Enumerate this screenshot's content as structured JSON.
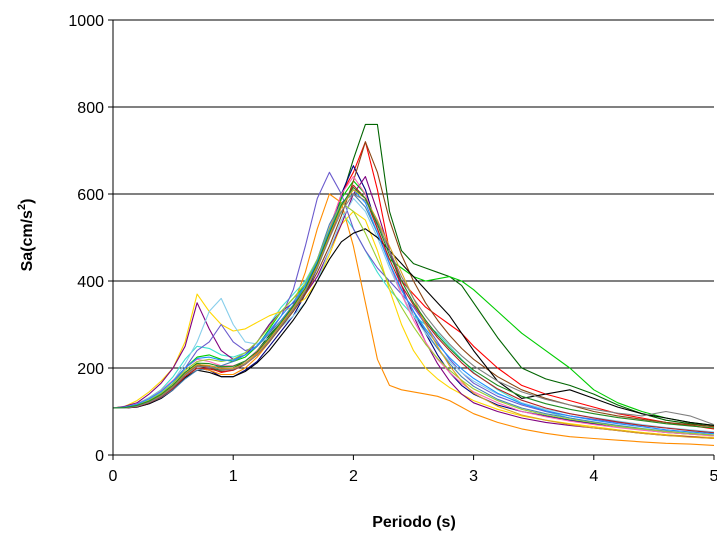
{
  "chart_data": {
    "type": "line",
    "title": "",
    "xlabel": "Periodo (s)",
    "ylabel_main": "Sa(cm/s",
    "ylabel_sup": "2",
    "ylabel_close": ")",
    "xlim": [
      0,
      5
    ],
    "ylim": [
      0,
      1000
    ],
    "xticks": [
      0,
      1,
      2,
      3,
      4,
      5
    ],
    "xtick_labels": [
      "0",
      "1",
      "2",
      "3",
      "4",
      "5"
    ],
    "yticks": [
      0,
      200,
      400,
      600,
      800,
      1000
    ],
    "ytick_labels": [
      "0",
      "200",
      "400",
      "600",
      "800",
      "1000"
    ],
    "grid": "horizontal",
    "legend": "none",
    "x": [
      0,
      0.1,
      0.2,
      0.3,
      0.4,
      0.5,
      0.6,
      0.7,
      0.8,
      0.9,
      1.0,
      1.1,
      1.2,
      1.3,
      1.4,
      1.5,
      1.6,
      1.7,
      1.8,
      1.9,
      2.0,
      2.1,
      2.2,
      2.3,
      2.4,
      2.5,
      2.6,
      2.7,
      2.8,
      2.9,
      3.0,
      3.2,
      3.4,
      3.6,
      3.8,
      4.0,
      4.2,
      4.4,
      4.6,
      4.8,
      5.0
    ],
    "series": [
      {
        "color": "#006400",
        "values": [
          108,
          108,
          112,
          122,
          136,
          160,
          190,
          210,
          200,
          195,
          200,
          215,
          240,
          275,
          305,
          335,
          375,
          430,
          500,
          590,
          680,
          760,
          760,
          560,
          470,
          440,
          430,
          420,
          410,
          390,
          350,
          270,
          200,
          175,
          160,
          140,
          115,
          95,
          80,
          72,
          65
        ]
      },
      {
        "color": "#ff0000",
        "values": [
          108,
          108,
          114,
          125,
          140,
          160,
          185,
          205,
          200,
          190,
          195,
          210,
          235,
          265,
          300,
          335,
          380,
          440,
          520,
          600,
          650,
          720,
          610,
          470,
          400,
          370,
          340,
          320,
          300,
          280,
          250,
          200,
          160,
          140,
          125,
          110,
          95,
          85,
          75,
          68,
          60
        ]
      },
      {
        "color": "#00cc00",
        "values": [
          108,
          110,
          116,
          128,
          145,
          170,
          200,
          225,
          230,
          220,
          215,
          225,
          250,
          290,
          330,
          360,
          390,
          440,
          510,
          590,
          630,
          600,
          520,
          450,
          430,
          410,
          400,
          405,
          410,
          400,
          380,
          330,
          280,
          240,
          200,
          150,
          120,
          100,
          85,
          75,
          68
        ]
      },
      {
        "color": "#000080",
        "values": [
          108,
          108,
          110,
          118,
          130,
          150,
          180,
          200,
          195,
          180,
          180,
          195,
          215,
          250,
          285,
          320,
          370,
          430,
          510,
          600,
          665,
          610,
          520,
          440,
          380,
          330,
          280,
          230,
          190,
          160,
          140,
          115,
          100,
          90,
          80,
          72,
          65,
          58,
          52,
          48,
          45
        ]
      },
      {
        "color": "#ff8c00",
        "values": [
          108,
          108,
          112,
          120,
          134,
          155,
          180,
          200,
          195,
          185,
          185,
          200,
          225,
          260,
          300,
          345,
          420,
          520,
          600,
          580,
          480,
          350,
          220,
          160,
          150,
          145,
          140,
          135,
          125,
          110,
          95,
          75,
          60,
          50,
          42,
          38,
          34,
          30,
          27,
          25,
          22
        ]
      },
      {
        "color": "#40e0d0",
        "values": [
          108,
          110,
          118,
          132,
          150,
          180,
          220,
          250,
          245,
          230,
          225,
          235,
          260,
          300,
          340,
          370,
          400,
          450,
          520,
          560,
          520,
          470,
          420,
          380,
          350,
          320,
          300,
          280,
          250,
          220,
          190,
          150,
          120,
          100,
          85,
          75,
          65,
          58,
          52,
          48,
          44
        ]
      },
      {
        "color": "#ffd700",
        "values": [
          108,
          112,
          125,
          145,
          170,
          200,
          260,
          370,
          330,
          300,
          285,
          290,
          305,
          320,
          330,
          340,
          360,
          400,
          460,
          530,
          560,
          540,
          470,
          380,
          300,
          240,
          200,
          175,
          155,
          140,
          125,
          105,
          90,
          80,
          72,
          65,
          58,
          52,
          47,
          43,
          40
        ]
      },
      {
        "color": "#800080",
        "values": [
          108,
          112,
          120,
          140,
          165,
          200,
          250,
          350,
          290,
          240,
          220,
          230,
          260,
          300,
          330,
          350,
          370,
          410,
          470,
          530,
          600,
          640,
          560,
          470,
          390,
          320,
          260,
          210,
          170,
          140,
          120,
          100,
          85,
          75,
          68,
          62,
          56,
          50,
          45,
          42,
          38
        ]
      },
      {
        "color": "#6a5acd",
        "values": [
          108,
          108,
          114,
          124,
          140,
          165,
          200,
          240,
          260,
          300,
          260,
          240,
          250,
          280,
          320,
          380,
          480,
          590,
          650,
          600,
          520,
          470,
          430,
          400,
          370,
          340,
          300,
          260,
          220,
          190,
          165,
          135,
          115,
          100,
          90,
          82,
          75,
          68,
          62,
          57,
          52
        ]
      },
      {
        "color": "#87ceeb",
        "values": [
          108,
          110,
          116,
          128,
          145,
          170,
          210,
          260,
          330,
          360,
          300,
          260,
          255,
          270,
          295,
          320,
          350,
          400,
          470,
          540,
          590,
          560,
          500,
          430,
          370,
          320,
          280,
          245,
          215,
          190,
          170,
          140,
          120,
          105,
          95,
          86,
          78,
          70,
          63,
          58,
          53
        ]
      },
      {
        "color": "#8b4513",
        "values": [
          108,
          108,
          112,
          122,
          136,
          158,
          185,
          205,
          205,
          200,
          200,
          210,
          230,
          260,
          295,
          330,
          370,
          420,
          480,
          550,
          630,
          720,
          650,
          540,
          460,
          400,
          350,
          310,
          275,
          245,
          220,
          180,
          150,
          130,
          115,
          100,
          90,
          82,
          75,
          70,
          65
        ]
      },
      {
        "color": "#ff69b4",
        "values": [
          108,
          110,
          118,
          130,
          148,
          172,
          200,
          220,
          215,
          205,
          205,
          215,
          240,
          270,
          305,
          340,
          380,
          440,
          520,
          600,
          640,
          600,
          520,
          440,
          370,
          310,
          260,
          220,
          190,
          165,
          145,
          120,
          100,
          88,
          78,
          70,
          63,
          57,
          52,
          48,
          44
        ]
      },
      {
        "color": "#000000",
        "values": [
          108,
          108,
          110,
          118,
          130,
          150,
          178,
          195,
          190,
          180,
          180,
          192,
          212,
          240,
          275,
          310,
          350,
          400,
          450,
          490,
          510,
          520,
          500,
          470,
          440,
          410,
          380,
          350,
          320,
          280,
          240,
          170,
          130,
          140,
          150,
          130,
          110,
          95,
          85,
          75,
          68
        ]
      },
      {
        "color": "#4682b4",
        "values": [
          108,
          108,
          112,
          120,
          132,
          150,
          175,
          195,
          200,
          205,
          215,
          230,
          250,
          280,
          310,
          345,
          390,
          450,
          530,
          580,
          600,
          570,
          510,
          440,
          380,
          330,
          285,
          245,
          210,
          180,
          158,
          128,
          108,
          95,
          85,
          76,
          68,
          61,
          55,
          50,
          46
        ]
      },
      {
        "color": "#9acd32",
        "values": [
          108,
          109,
          115,
          126,
          142,
          165,
          195,
          215,
          220,
          215,
          220,
          235,
          260,
          295,
          330,
          360,
          395,
          450,
          520,
          580,
          560,
          510,
          450,
          390,
          340,
          295,
          255,
          222,
          195,
          172,
          152,
          125,
          105,
          92,
          82,
          74,
          66,
          60,
          54,
          50,
          46
        ]
      },
      {
        "color": "#b22222",
        "values": [
          108,
          108,
          111,
          120,
          133,
          153,
          180,
          200,
          198,
          192,
          195,
          208,
          230,
          262,
          298,
          335,
          378,
          432,
          500,
          570,
          620,
          590,
          520,
          450,
          390,
          345,
          305,
          270,
          240,
          212,
          188,
          152,
          126,
          108,
          95,
          85,
          76,
          68,
          62,
          56,
          51
        ]
      },
      {
        "color": "#1e90ff",
        "values": [
          108,
          110,
          117,
          129,
          146,
          170,
          200,
          222,
          225,
          218,
          218,
          230,
          252,
          285,
          320,
          352,
          390,
          445,
          515,
          575,
          610,
          580,
          510,
          440,
          380,
          330,
          290,
          255,
          224,
          198,
          176,
          142,
          118,
          102,
          90,
          80,
          72,
          65,
          58,
          53,
          49
        ]
      },
      {
        "color": "#daa520",
        "values": [
          108,
          108,
          113,
          123,
          138,
          160,
          188,
          208,
          206,
          198,
          199,
          211,
          233,
          266,
          302,
          338,
          380,
          436,
          505,
          570,
          610,
          590,
          540,
          480,
          420,
          360,
          300,
          250,
          205,
          170,
          142,
          112,
          92,
          80,
          70,
          62,
          56,
          50,
          45,
          41,
          38
        ]
      },
      {
        "color": "#808080",
        "values": [
          108,
          108,
          112,
          121,
          135,
          156,
          184,
          204,
          202,
          196,
          197,
          209,
          230,
          262,
          298,
          334,
          376,
          430,
          498,
          560,
          600,
          585,
          535,
          470,
          410,
          360,
          320,
          285,
          255,
          228,
          205,
          170,
          145,
          128,
          115,
          105,
          96,
          90,
          100,
          90,
          70
        ]
      },
      {
        "color": "#228b22",
        "values": [
          108,
          109,
          114,
          124,
          139,
          161,
          190,
          211,
          210,
          203,
          204,
          216,
          238,
          270,
          306,
          342,
          384,
          440,
          510,
          575,
          615,
          590,
          530,
          460,
          400,
          350,
          310,
          275,
          245,
          218,
          195,
          160,
          135,
          118,
          105,
          95,
          86,
          79,
          72,
          67,
          62
        ]
      }
    ]
  }
}
